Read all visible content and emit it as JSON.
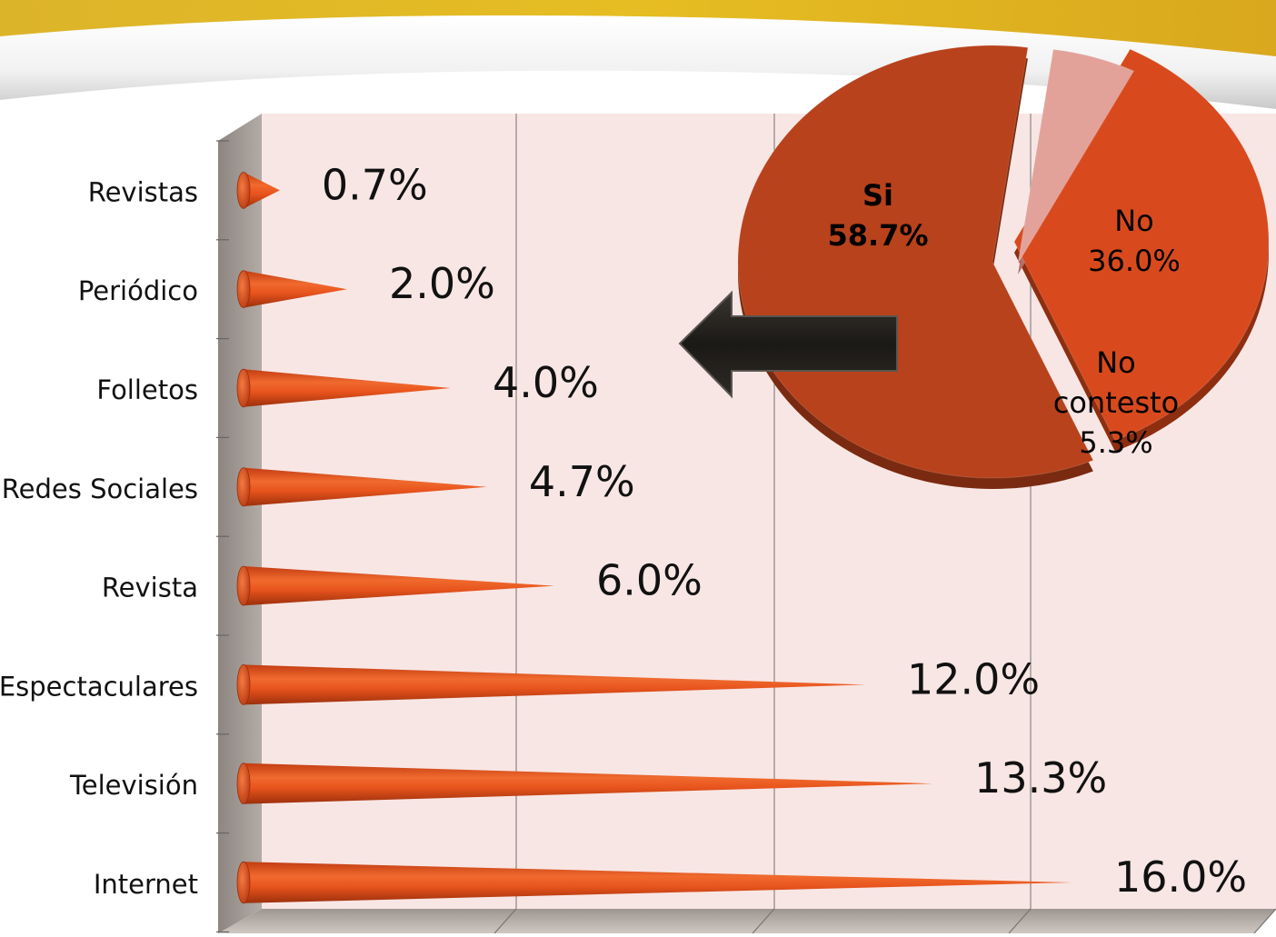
{
  "colors": {
    "bar": "#e8541d",
    "bar_dark": "#b8380f",
    "plot_bg": "#f8e6e4",
    "wall": "#a39a94",
    "pie_si": "#b8421c",
    "pie_no": "#d84a1e",
    "pie_nc": "#e2a29a",
    "arrow": "#1e1c19",
    "banner": "#e0b51e"
  },
  "chart_data": [
    {
      "type": "bar",
      "orientation": "horizontal",
      "bar_shape": "cone",
      "categories": [
        "Revistas",
        "Periódico",
        "Folletos",
        "Redes Sociales",
        "Revista",
        "Espectaculares",
        "Televisión",
        "Internet"
      ],
      "values": [
        0.7,
        2.0,
        4.0,
        4.7,
        6.0,
        12.0,
        13.3,
        16.0
      ],
      "value_labels": [
        "0.7%",
        "2.0%",
        "4.0%",
        "4.7%",
        "6.0%",
        "12.0%",
        "13.3%",
        "16.0%"
      ],
      "xlim": [
        0,
        20
      ],
      "grid": true
    },
    {
      "type": "pie",
      "exploded": true,
      "slices": [
        {
          "label": "Si",
          "value": 58.7,
          "value_label": "58.7%"
        },
        {
          "label": "No",
          "value": 36.0,
          "value_label": "36.0%"
        },
        {
          "label_lines": [
            "No",
            "contesto"
          ],
          "value": 5.3,
          "value_label": "5.3%"
        }
      ]
    }
  ]
}
